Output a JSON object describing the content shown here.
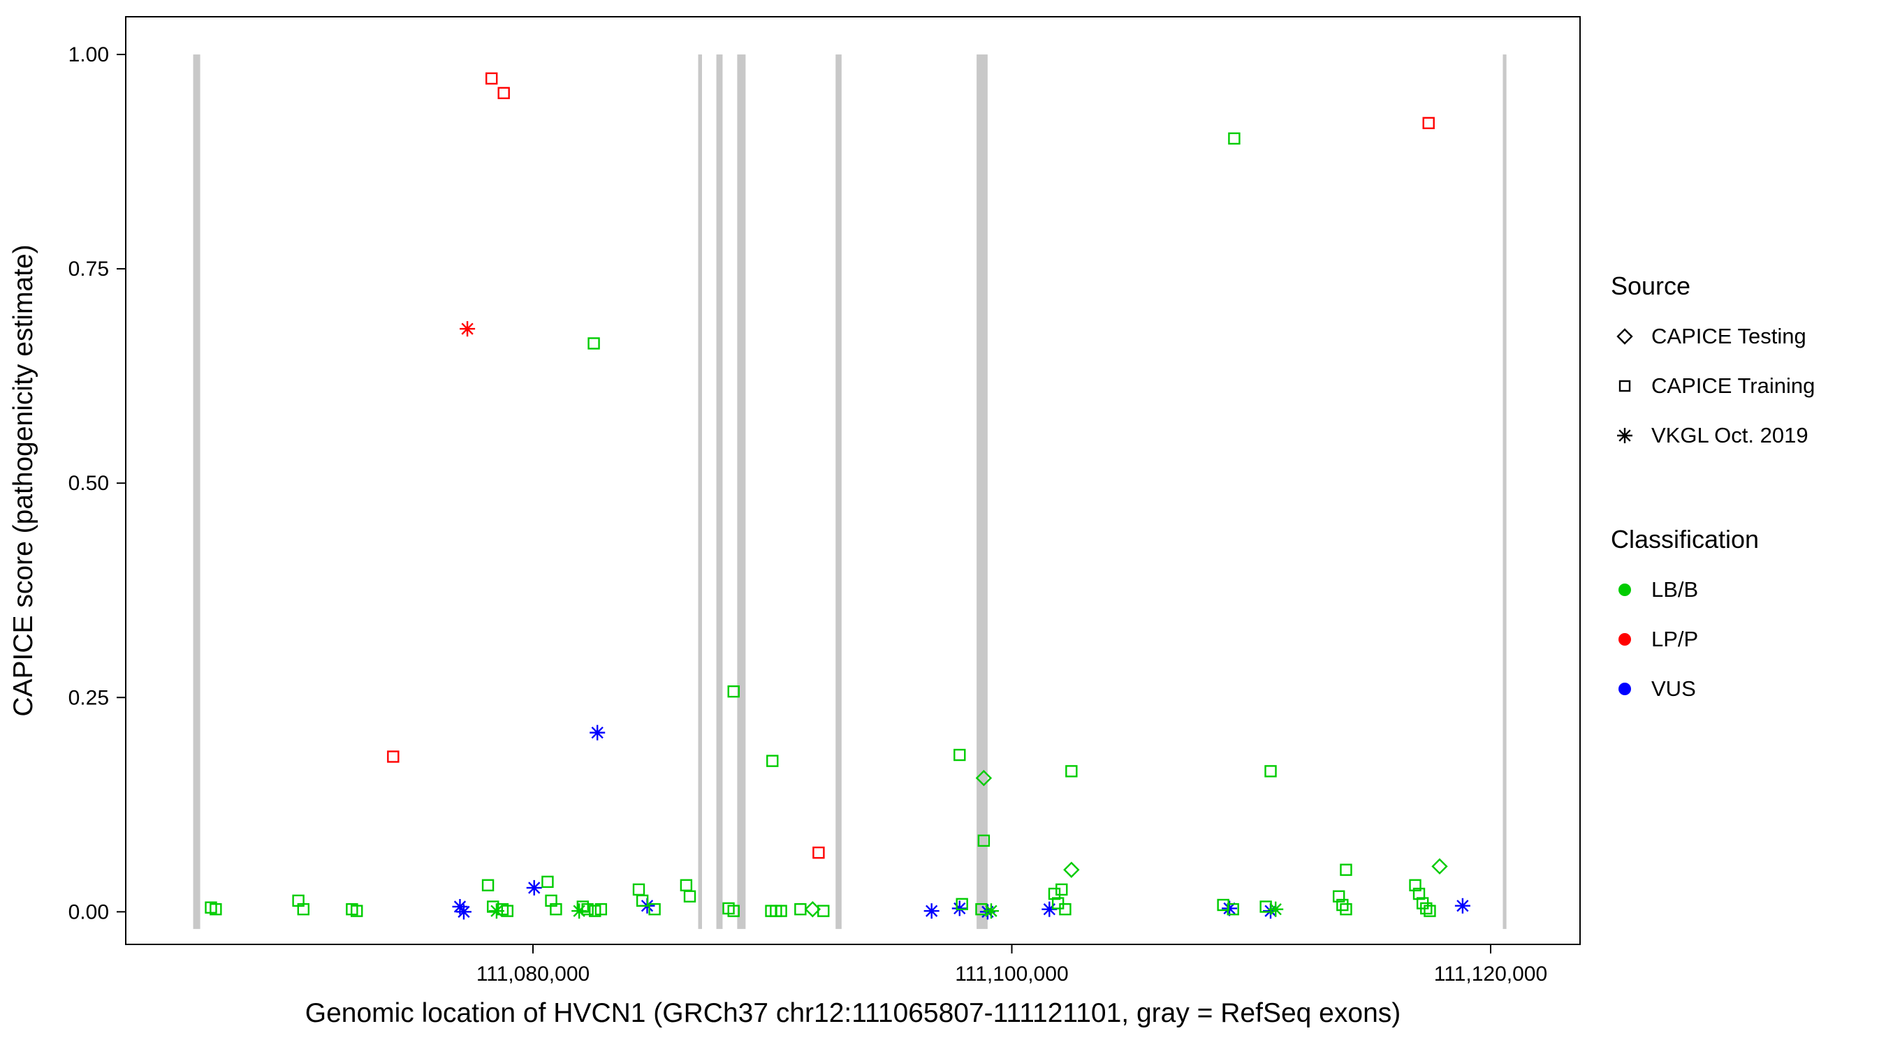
{
  "legend": {
    "source": {
      "title": "Source",
      "items": [
        {
          "label": "CAPICE Testing",
          "shape": "diamond"
        },
        {
          "label": "CAPICE Training",
          "shape": "square"
        },
        {
          "label": "VKGL Oct. 2019",
          "shape": "asterisk"
        }
      ]
    },
    "classification": {
      "title": "Classification",
      "items": [
        {
          "label": "LB/B",
          "color": "#00CC00"
        },
        {
          "label": "LP/P",
          "color": "#FF0000"
        },
        {
          "label": "VUS",
          "color": "#0000FF"
        }
      ]
    }
  },
  "chart_data": {
    "type": "scatter",
    "title": "",
    "xlabel": "Genomic location of HVCN1 (GRCh37 chr12:111065807-111121101, gray = RefSeq exons)",
    "ylabel": "CAPICE score (pathogenicity estimate)",
    "x_domain": [
      111062990,
      111123735
    ],
    "y_domain": [
      -0.038,
      1.044
    ],
    "x_ticks": [
      {
        "value": 111080000,
        "label": "111,080,000"
      },
      {
        "value": 111100000,
        "label": "111,100,000"
      },
      {
        "value": 111120000,
        "label": "111,120,000"
      }
    ],
    "y_ticks": [
      {
        "value": 0.0,
        "label": "0.00"
      },
      {
        "value": 0.25,
        "label": "0.25"
      },
      {
        "value": 0.5,
        "label": "0.50"
      },
      {
        "value": 0.75,
        "label": "0.75"
      },
      {
        "value": 1.0,
        "label": "1.00"
      }
    ],
    "grid": false,
    "legend_position": "right",
    "exon_color": "#C8C8C8",
    "exon_y_range": [
      -0.02,
      1.0
    ],
    "exons": [
      {
        "start": 111065807,
        "end": 111066100
      },
      {
        "start": 111086900,
        "end": 111087060
      },
      {
        "start": 111087660,
        "end": 111087920
      },
      {
        "start": 111088530,
        "end": 111088880
      },
      {
        "start": 111092640,
        "end": 111092890
      },
      {
        "start": 111098530,
        "end": 111098990
      },
      {
        "start": 111120510,
        "end": 111120660
      }
    ],
    "colors": {
      "LB/B": "#00CC00",
      "LP/P": "#FF0000",
      "VUS": "#0000FF"
    },
    "points": [
      {
        "x": 111078270,
        "y": 0.972,
        "source": "training",
        "cls": "LP/P"
      },
      {
        "x": 111078780,
        "y": 0.955,
        "source": "training",
        "cls": "LP/P"
      },
      {
        "x": 111074160,
        "y": 0.181,
        "source": "training",
        "cls": "LP/P"
      },
      {
        "x": 111091930,
        "y": 0.069,
        "source": "training",
        "cls": "LP/P"
      },
      {
        "x": 111117410,
        "y": 0.92,
        "source": "training",
        "cls": "LP/P"
      },
      {
        "x": 111077260,
        "y": 0.68,
        "source": "vkgl",
        "cls": "LP/P"
      },
      {
        "x": 111082690,
        "y": 0.209,
        "source": "vkgl",
        "cls": "VUS"
      },
      {
        "x": 111080050,
        "y": 0.028,
        "source": "vkgl",
        "cls": "VUS"
      },
      {
        "x": 111076950,
        "y": 0.006,
        "source": "vkgl",
        "cls": "VUS"
      },
      {
        "x": 111077110,
        "y": 0.0,
        "source": "vkgl",
        "cls": "VUS"
      },
      {
        "x": 111084770,
        "y": 0.007,
        "source": "vkgl",
        "cls": "VUS"
      },
      {
        "x": 111096650,
        "y": 0.001,
        "source": "vkgl",
        "cls": "VUS"
      },
      {
        "x": 111097820,
        "y": 0.004,
        "source": "vkgl",
        "cls": "VUS"
      },
      {
        "x": 111098990,
        "y": 0.0,
        "source": "vkgl",
        "cls": "VUS"
      },
      {
        "x": 111101570,
        "y": 0.003,
        "source": "vkgl",
        "cls": "VUS"
      },
      {
        "x": 111109090,
        "y": 0.004,
        "source": "vkgl",
        "cls": "VUS"
      },
      {
        "x": 111110810,
        "y": 0.001,
        "source": "vkgl",
        "cls": "VUS"
      },
      {
        "x": 111118830,
        "y": 0.007,
        "source": "vkgl",
        "cls": "VUS"
      },
      {
        "x": 111078480,
        "y": 0.001,
        "source": "vkgl",
        "cls": "LB/B"
      },
      {
        "x": 111081930,
        "y": 0.001,
        "source": "vkgl",
        "cls": "LB/B"
      },
      {
        "x": 111099140,
        "y": 0.001,
        "source": "vkgl",
        "cls": "LB/B"
      },
      {
        "x": 111111020,
        "y": 0.003,
        "source": "vkgl",
        "cls": "LB/B"
      },
      {
        "x": 111098830,
        "y": 0.156,
        "source": "testing",
        "cls": "LB/B"
      },
      {
        "x": 111102490,
        "y": 0.049,
        "source": "testing",
        "cls": "LB/B"
      },
      {
        "x": 111117870,
        "y": 0.053,
        "source": "testing",
        "cls": "LB/B"
      },
      {
        "x": 111091680,
        "y": 0.003,
        "source": "testing",
        "cls": "LB/B"
      },
      {
        "x": 111082540,
        "y": 0.663,
        "source": "training",
        "cls": "LB/B"
      },
      {
        "x": 111109290,
        "y": 0.902,
        "source": "training",
        "cls": "LB/B"
      },
      {
        "x": 111088380,
        "y": 0.257,
        "source": "training",
        "cls": "LB/B"
      },
      {
        "x": 111090000,
        "y": 0.176,
        "source": "training",
        "cls": "LB/B"
      },
      {
        "x": 111097820,
        "y": 0.183,
        "source": "training",
        "cls": "LB/B"
      },
      {
        "x": 111102490,
        "y": 0.164,
        "source": "training",
        "cls": "LB/B"
      },
      {
        "x": 111110810,
        "y": 0.164,
        "source": "training",
        "cls": "LB/B"
      },
      {
        "x": 111098830,
        "y": 0.083,
        "source": "training",
        "cls": "LB/B"
      },
      {
        "x": 111113960,
        "y": 0.049,
        "source": "training",
        "cls": "LB/B"
      },
      {
        "x": 111066550,
        "y": 0.005,
        "source": "training",
        "cls": "LB/B"
      },
      {
        "x": 111066750,
        "y": 0.003,
        "source": "training",
        "cls": "LB/B"
      },
      {
        "x": 111070200,
        "y": 0.013,
        "source": "training",
        "cls": "LB/B"
      },
      {
        "x": 111070410,
        "y": 0.003,
        "source": "training",
        "cls": "LB/B"
      },
      {
        "x": 111072440,
        "y": 0.003,
        "source": "training",
        "cls": "LB/B"
      },
      {
        "x": 111072640,
        "y": 0.001,
        "source": "training",
        "cls": "LB/B"
      },
      {
        "x": 111078120,
        "y": 0.031,
        "source": "training",
        "cls": "LB/B"
      },
      {
        "x": 111078330,
        "y": 0.006,
        "source": "training",
        "cls": "LB/B"
      },
      {
        "x": 111078730,
        "y": 0.003,
        "source": "training",
        "cls": "LB/B"
      },
      {
        "x": 111078930,
        "y": 0.001,
        "source": "training",
        "cls": "LB/B"
      },
      {
        "x": 111080610,
        "y": 0.035,
        "source": "training",
        "cls": "LB/B"
      },
      {
        "x": 111080760,
        "y": 0.013,
        "source": "training",
        "cls": "LB/B"
      },
      {
        "x": 111080960,
        "y": 0.003,
        "source": "training",
        "cls": "LB/B"
      },
      {
        "x": 111082080,
        "y": 0.006,
        "source": "training",
        "cls": "LB/B"
      },
      {
        "x": 111082280,
        "y": 0.003,
        "source": "training",
        "cls": "LB/B"
      },
      {
        "x": 111082590,
        "y": 0.001,
        "source": "training",
        "cls": "LB/B"
      },
      {
        "x": 111082840,
        "y": 0.003,
        "source": "training",
        "cls": "LB/B"
      },
      {
        "x": 111084420,
        "y": 0.026,
        "source": "training",
        "cls": "LB/B"
      },
      {
        "x": 111084570,
        "y": 0.013,
        "source": "training",
        "cls": "LB/B"
      },
      {
        "x": 111085080,
        "y": 0.003,
        "source": "training",
        "cls": "LB/B"
      },
      {
        "x": 111086400,
        "y": 0.031,
        "source": "training",
        "cls": "LB/B"
      },
      {
        "x": 111086550,
        "y": 0.018,
        "source": "training",
        "cls": "LB/B"
      },
      {
        "x": 111088170,
        "y": 0.004,
        "source": "training",
        "cls": "LB/B"
      },
      {
        "x": 111088380,
        "y": 0.001,
        "source": "training",
        "cls": "LB/B"
      },
      {
        "x": 111089950,
        "y": 0.001,
        "source": "training",
        "cls": "LB/B"
      },
      {
        "x": 111090150,
        "y": 0.001,
        "source": "training",
        "cls": "LB/B"
      },
      {
        "x": 111090360,
        "y": 0.001,
        "source": "training",
        "cls": "LB/B"
      },
      {
        "x": 111091170,
        "y": 0.003,
        "source": "training",
        "cls": "LB/B"
      },
      {
        "x": 111092130,
        "y": 0.001,
        "source": "training",
        "cls": "LB/B"
      },
      {
        "x": 111097920,
        "y": 0.009,
        "source": "training",
        "cls": "LB/B"
      },
      {
        "x": 111098730,
        "y": 0.003,
        "source": "training",
        "cls": "LB/B"
      },
      {
        "x": 111101780,
        "y": 0.021,
        "source": "training",
        "cls": "LB/B"
      },
      {
        "x": 111101930,
        "y": 0.01,
        "source": "training",
        "cls": "LB/B"
      },
      {
        "x": 111102080,
        "y": 0.026,
        "source": "training",
        "cls": "LB/B"
      },
      {
        "x": 111102230,
        "y": 0.003,
        "source": "training",
        "cls": "LB/B"
      },
      {
        "x": 111108830,
        "y": 0.008,
        "source": "training",
        "cls": "LB/B"
      },
      {
        "x": 111109240,
        "y": 0.003,
        "source": "training",
        "cls": "LB/B"
      },
      {
        "x": 111110610,
        "y": 0.006,
        "source": "training",
        "cls": "LB/B"
      },
      {
        "x": 111113660,
        "y": 0.018,
        "source": "training",
        "cls": "LB/B"
      },
      {
        "x": 111113810,
        "y": 0.008,
        "source": "training",
        "cls": "LB/B"
      },
      {
        "x": 111113960,
        "y": 0.003,
        "source": "training",
        "cls": "LB/B"
      },
      {
        "x": 111116850,
        "y": 0.031,
        "source": "training",
        "cls": "LB/B"
      },
      {
        "x": 111117010,
        "y": 0.021,
        "source": "training",
        "cls": "LB/B"
      },
      {
        "x": 111117160,
        "y": 0.01,
        "source": "training",
        "cls": "LB/B"
      },
      {
        "x": 111117310,
        "y": 0.004,
        "source": "training",
        "cls": "LB/B"
      },
      {
        "x": 111117460,
        "y": 0.001,
        "source": "training",
        "cls": "LB/B"
      }
    ]
  }
}
